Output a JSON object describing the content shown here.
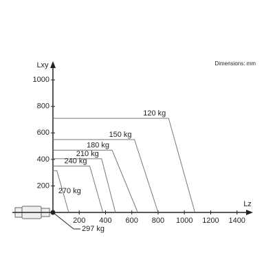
{
  "chart_data": {
    "type": "line",
    "note": "Dimensions: mm",
    "xlabel": "Lz",
    "ylabel": "Lxy",
    "xlim": [
      0,
      1480
    ],
    "ylim": [
      0,
      1110
    ],
    "xticks": [
      200,
      400,
      600,
      800,
      1000,
      1200,
      1400
    ],
    "yticks": [
      200,
      400,
      600,
      800,
      1000
    ],
    "color": "#777777",
    "series": [
      {
        "name": "120 kg",
        "x": [
          0,
          880,
          1080
        ],
        "values": [
          710,
          710,
          0
        ]
      },
      {
        "name": "150 kg",
        "x": [
          0,
          620,
          800
        ],
        "values": [
          550,
          550,
          0
        ]
      },
      {
        "name": "180 kg",
        "x": [
          0,
          450,
          645
        ],
        "values": [
          470,
          470,
          0
        ]
      },
      {
        "name": "210 kg",
        "x": [
          0,
          370,
          475
        ],
        "values": [
          405,
          405,
          0
        ]
      },
      {
        "name": "240 kg",
        "x": [
          0,
          280,
          380
        ],
        "values": [
          350,
          350,
          0
        ]
      },
      {
        "name": "270 kg",
        "x": [
          0,
          30,
          120
        ],
        "values": [
          315,
          315,
          0
        ]
      },
      {
        "name": "297 kg",
        "x": [
          0
        ],
        "values": [
          0
        ]
      }
    ]
  }
}
